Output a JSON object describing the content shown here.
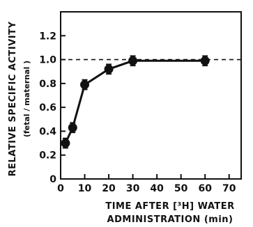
{
  "chart_data": {
    "type": "line",
    "title": "",
    "xlabel_line1": "TIME AFTER [³H] WATER",
    "xlabel_line2": "ADMINISTRATION  (min)",
    "ylabel_line1": "RELATIVE  SPECIFIC  ACTIVITY",
    "ylabel_line2": "(fetal / maternal )",
    "xlim": [
      0,
      75
    ],
    "ylim": [
      0,
      1.4
    ],
    "xticks": [
      0,
      10,
      20,
      30,
      40,
      50,
      60,
      70
    ],
    "yticks": [
      0,
      0.2,
      0.4,
      0.6,
      0.8,
      1.0,
      1.2
    ],
    "xtick_labels": [
      "0",
      "10",
      "20",
      "30",
      "40",
      "50",
      "60",
      "70"
    ],
    "ytick_labels": [
      "0",
      "0.2",
      "0.4",
      "0.6",
      "0.8",
      "1.0",
      "1.2"
    ],
    "grid": false,
    "reference_line": {
      "y": 1.0,
      "style": "dashed"
    },
    "series": [
      {
        "x": [
          2,
          5,
          10,
          20,
          30,
          60
        ],
        "y": [
          0.3,
          0.43,
          0.79,
          0.92,
          0.99,
          0.99
        ],
        "error": [
          0.04,
          0.04,
          0.04,
          0.04,
          0.04,
          0.04
        ],
        "line_style": "solid",
        "marker": "filled-circle"
      }
    ]
  },
  "colors": {
    "ink": "#111111",
    "background": "#ffffff"
  }
}
